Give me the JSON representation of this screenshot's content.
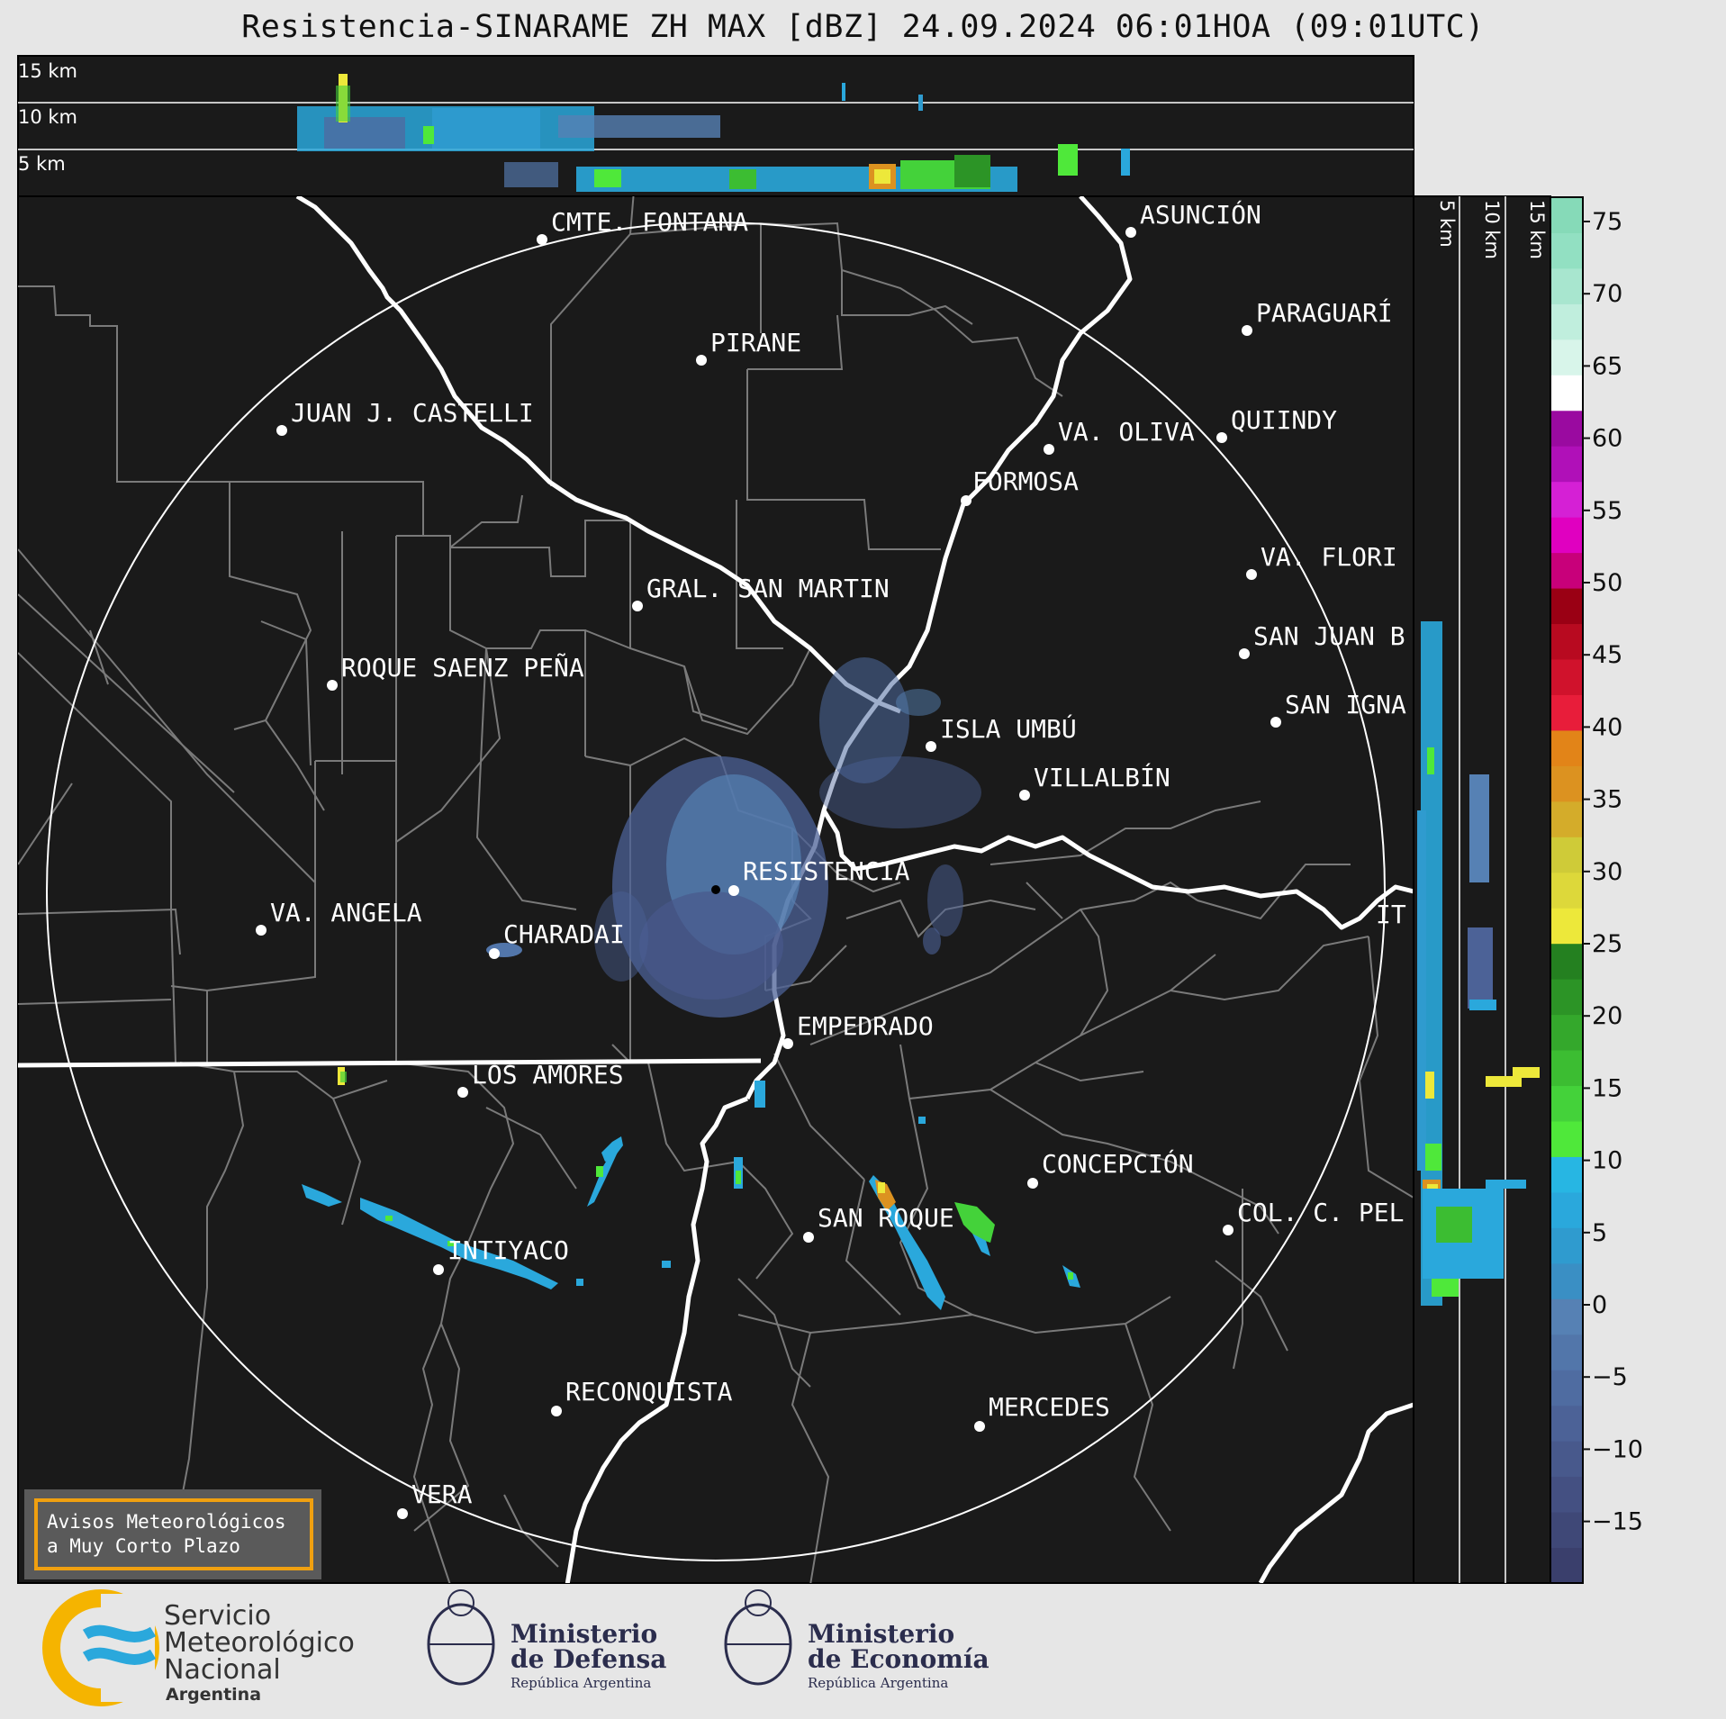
{
  "title": "Resistencia-SINARAME ZH MAX [dBZ] 24.09.2024 06:01HOA (09:01UTC)",
  "top_panel": {
    "labels": [
      "15 km",
      "10 km",
      "5 km"
    ]
  },
  "side_panel": {
    "labels": [
      "5 km",
      "10 km",
      "15 km"
    ]
  },
  "colorbar": {
    "ticks": [
      "75",
      "70",
      "65",
      "60",
      "55",
      "50",
      "45",
      "40",
      "35",
      "30",
      "25",
      "20",
      "15",
      "10",
      "5",
      "0",
      "−5",
      "−10",
      "−15"
    ],
    "colors": [
      "#3a3f6c",
      "#3f4877",
      "#445082",
      "#48598c",
      "#4c6297",
      "#4f6ca1",
      "#5276aa",
      "#5681b4",
      "#3a8fc4",
      "#2f9bcf",
      "#2aa8dc",
      "#27b6e3",
      "#4fe83a",
      "#44d23a",
      "#3cbd32",
      "#34a82c",
      "#2c9426",
      "#248020",
      "#ede83a",
      "#ddd83a",
      "#cfcb38",
      "#d4ac2a",
      "#dc9220",
      "#e28418",
      "#e81d3a",
      "#d0122c",
      "#b80a20",
      "#9a0014",
      "#c8007a",
      "#e000c0",
      "#d520d5",
      "#b010b8",
      "#9a0aa0",
      "#ffffff",
      "#d8f5ea",
      "#c0eedd",
      "#a8e6cf",
      "#92e0c2",
      "#86dab8"
    ]
  },
  "cities": [
    {
      "name": "CMTE. FONTANA"
    },
    {
      "name": "ASUNCIÓN"
    },
    {
      "name": "PARAGUARÍ"
    },
    {
      "name": "PIRANE"
    },
    {
      "name": "JUAN J. CASTELLI"
    },
    {
      "name": "VA. OLIVA"
    },
    {
      "name": "QUIINDY"
    },
    {
      "name": "FORMOSA"
    },
    {
      "name": "VA. FLORI"
    },
    {
      "name": "GRAL. SAN MARTIN"
    },
    {
      "name": "SAN JUAN B"
    },
    {
      "name": "ROQUE SAENZ PEÑA"
    },
    {
      "name": "SAN IGNA"
    },
    {
      "name": "ISLA UMBÚ"
    },
    {
      "name": "VILLALBÍN"
    },
    {
      "name": "RESISTENCIA"
    },
    {
      "name": "VA. ANGELA"
    },
    {
      "name": "CHARADAI"
    },
    {
      "name": "IT"
    },
    {
      "name": "EMPEDRADO"
    },
    {
      "name": "LOS AMORES"
    },
    {
      "name": "CONCEPCIÓN"
    },
    {
      "name": "SAN ROQUE"
    },
    {
      "name": "COL. C. PEL"
    },
    {
      "name": "INTIYACO"
    },
    {
      "name": "RECONQUISTA"
    },
    {
      "name": "MERCEDES"
    },
    {
      "name": "VERA"
    }
  ],
  "notice": {
    "line1": "Avisos Meteorológicos",
    "line2": "a Muy Corto Plazo"
  },
  "footer": {
    "smn": {
      "line1": "Servicio",
      "line2": "Meteorológico",
      "line3": "Nacional",
      "line4": "Argentina"
    },
    "defensa": {
      "line1": "Ministerio",
      "line2": "de Defensa",
      "line3": "República Argentina"
    },
    "economia": {
      "line1": "Ministerio",
      "line2": "de Economía",
      "line3": "República Argentina"
    }
  }
}
